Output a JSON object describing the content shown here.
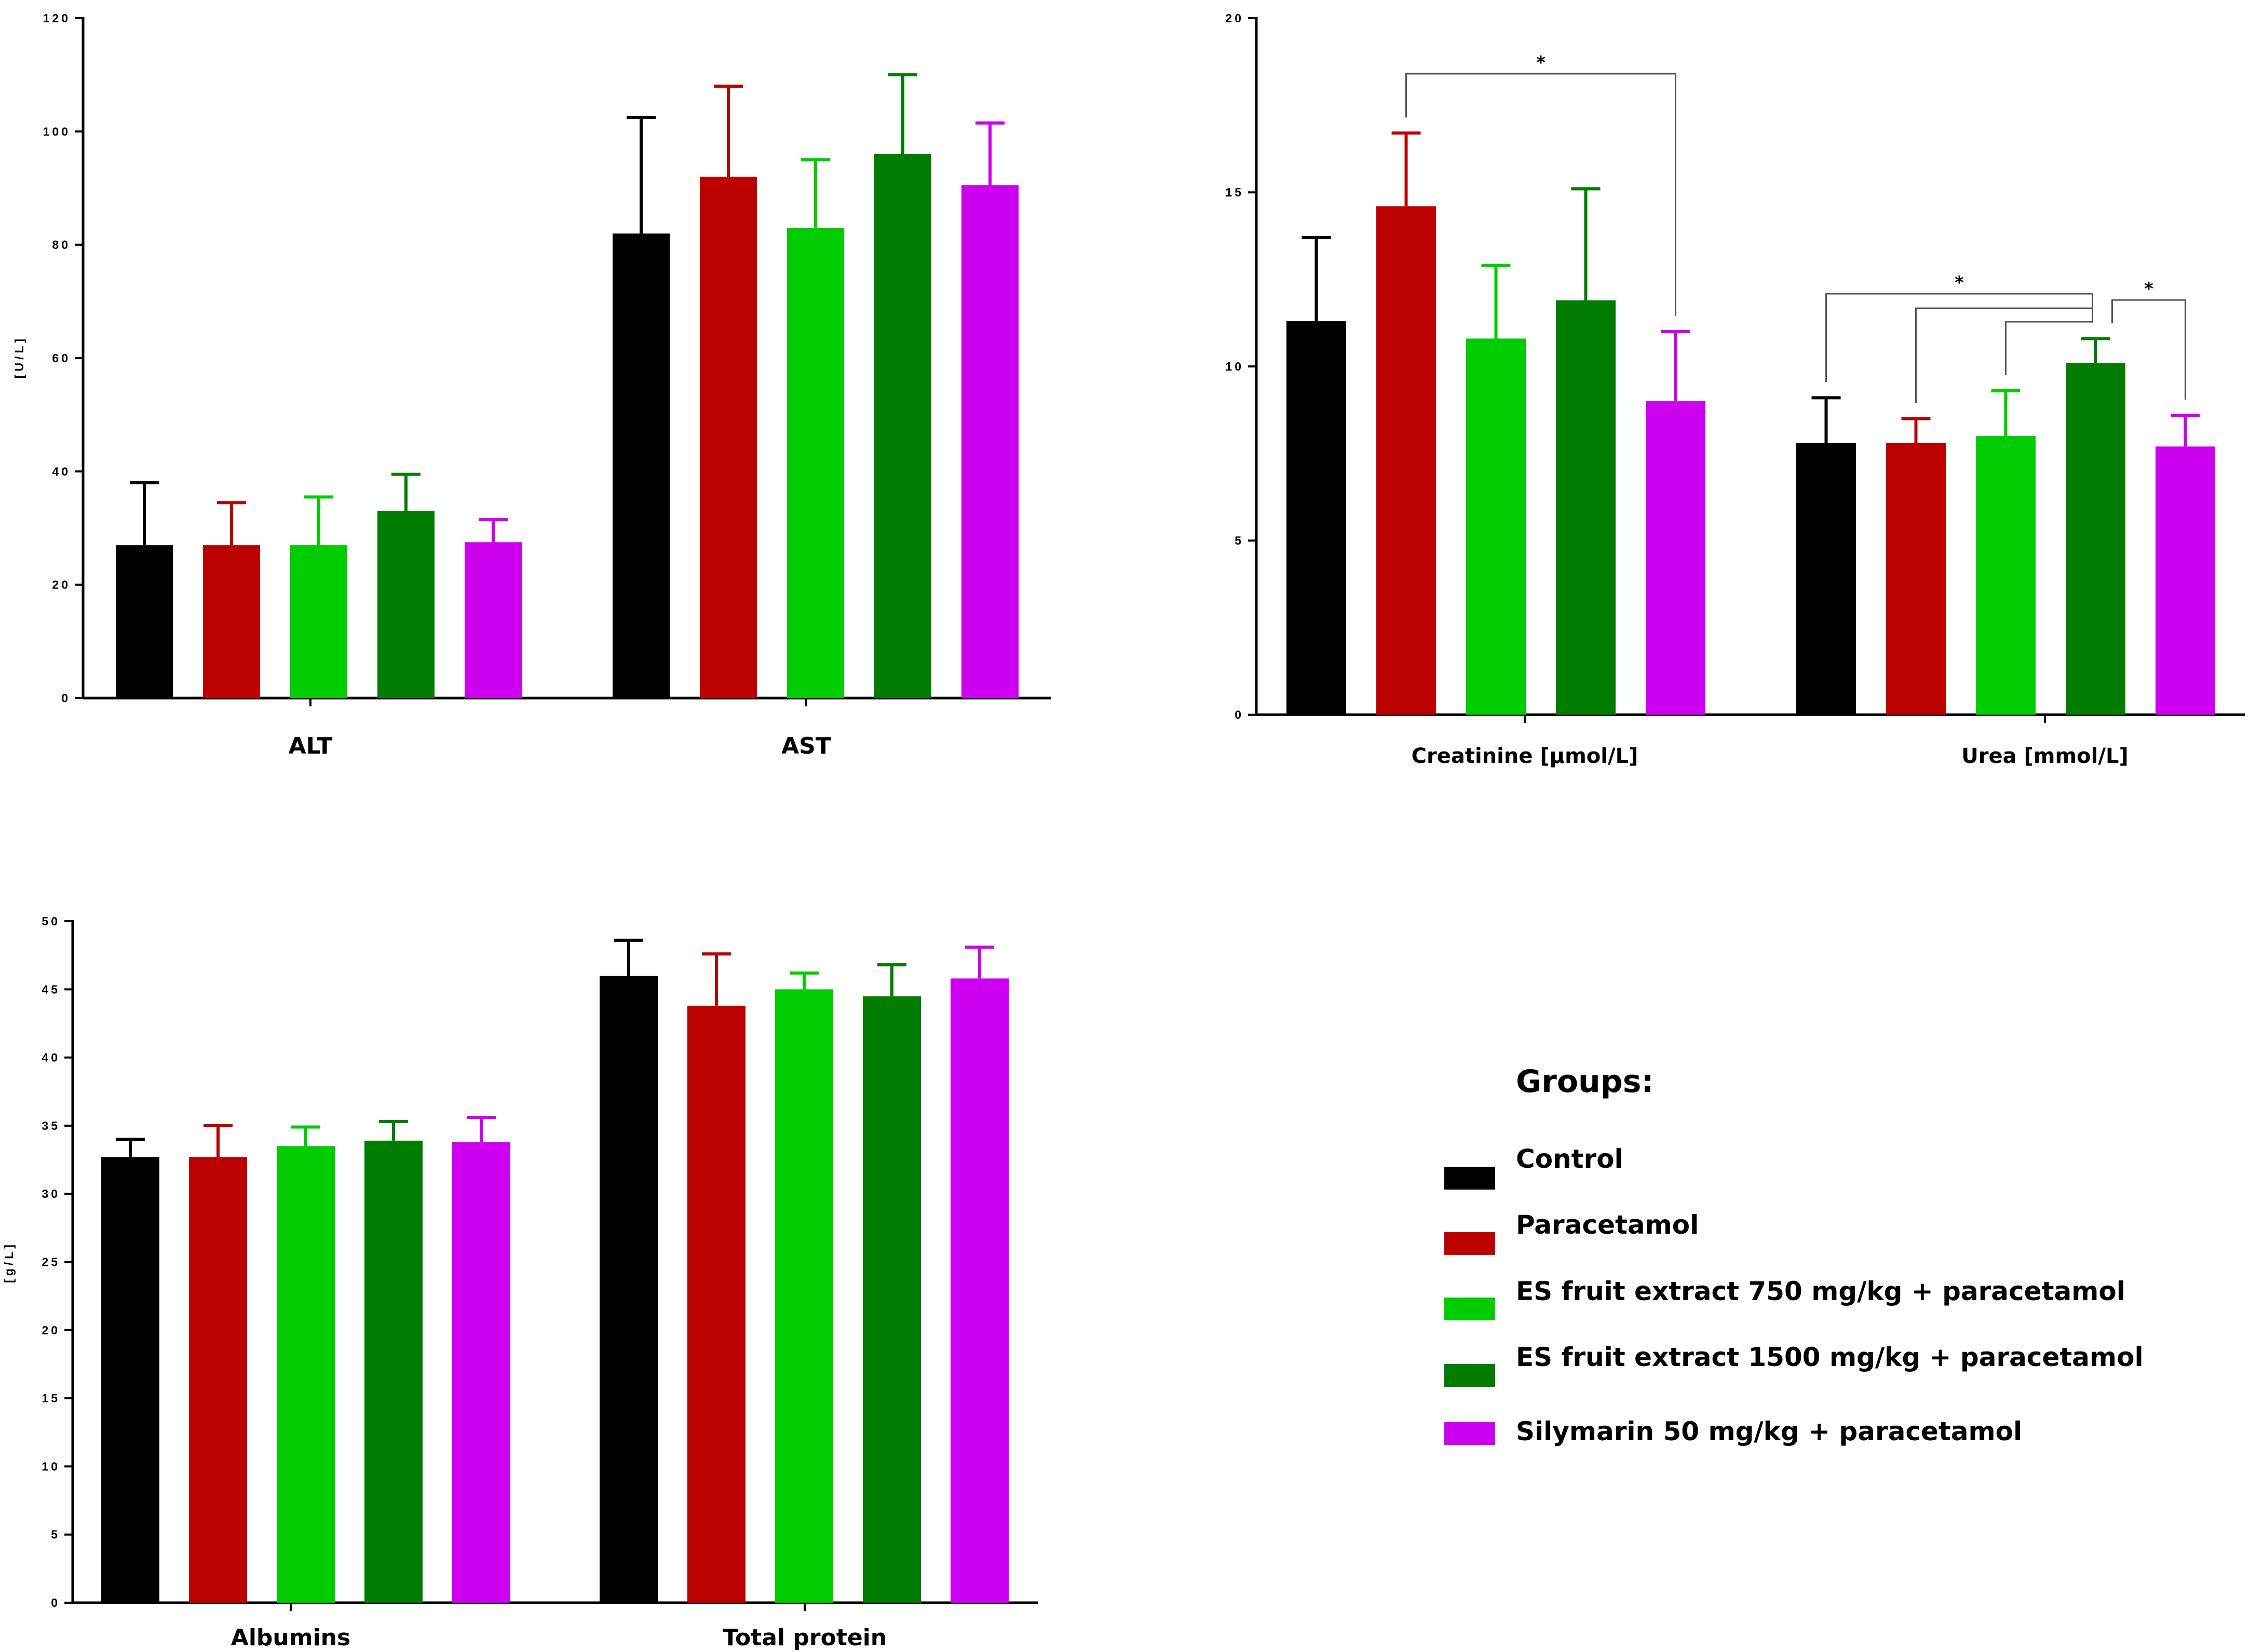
{
  "chart_data": [
    {
      "type": "bar",
      "categories": [
        "ALT",
        "AST"
      ],
      "ylabel": "[U/L]",
      "ylim": [
        0,
        120
      ],
      "yticks": [
        "0",
        "20",
        "40",
        "60",
        "80",
        "100",
        "120"
      ],
      "series": [
        {
          "name": "Control",
          "values": [
            27,
            82
          ],
          "errors": [
            11,
            20.5
          ]
        },
        {
          "name": "Paracetamol",
          "values": [
            27,
            92
          ],
          "errors": [
            7.5,
            16
          ]
        },
        {
          "name": "ES fruit extract 750 mg/kg + paracetamol",
          "values": [
            27,
            83
          ],
          "errors": [
            8.5,
            12
          ]
        },
        {
          "name": "ES fruit extract 1500 mg/kg + paracetamol",
          "values": [
            33,
            96
          ],
          "errors": [
            6.5,
            14
          ]
        },
        {
          "name": "Silymarin 50 mg/kg + paracetamol",
          "values": [
            27.5,
            90.5
          ],
          "errors": [
            4,
            11
          ]
        }
      ],
      "significance": []
    },
    {
      "type": "bar",
      "categories": [
        "Creatinine [µmol/L]",
        "Urea [mmol/L]"
      ],
      "ylabel": "",
      "ylim": [
        0,
        20
      ],
      "yticks": [
        "0",
        "5",
        "10",
        "15",
        "20"
      ],
      "series": [
        {
          "name": "Control",
          "values": [
            11.3,
            7.8
          ],
          "errors": [
            2.4,
            1.3
          ]
        },
        {
          "name": "Paracetamol",
          "values": [
            14.6,
            7.8
          ],
          "errors": [
            2.1,
            0.7
          ]
        },
        {
          "name": "ES fruit extract 750 mg/kg + paracetamol",
          "values": [
            10.8,
            8.0
          ],
          "errors": [
            2.1,
            1.3
          ]
        },
        {
          "name": "ES fruit extract 1500 mg/kg + paracetamol",
          "values": [
            11.9,
            10.1
          ],
          "errors": [
            3.2,
            0.7
          ]
        },
        {
          "name": "Silymarin 50 mg/kg + paracetamol",
          "values": [
            9.0,
            7.7
          ],
          "errors": [
            2.0,
            0.9
          ]
        }
      ],
      "significance": [
        {
          "category": 0,
          "from": 1,
          "to": 4,
          "label": "*"
        },
        {
          "category": 1,
          "from": 0,
          "to": 3,
          "label": "*"
        },
        {
          "category": 1,
          "from": 1,
          "to": 3,
          "label": ""
        },
        {
          "category": 1,
          "from": 2,
          "to": 3,
          "label": ""
        },
        {
          "category": 1,
          "from": 3,
          "to": 4,
          "label": "*"
        }
      ]
    },
    {
      "type": "bar",
      "categories": [
        "Albumins",
        "Total protein"
      ],
      "ylabel": "[g/L]",
      "ylim": [
        0,
        50
      ],
      "yticks": [
        "0",
        "5",
        "10",
        "15",
        "20",
        "25",
        "30",
        "35",
        "40",
        "45",
        "50"
      ],
      "series": [
        {
          "name": "Control",
          "values": [
            32.7,
            46.0
          ],
          "errors": [
            1.3,
            2.6
          ]
        },
        {
          "name": "Paracetamol",
          "values": [
            32.7,
            43.8
          ],
          "errors": [
            2.3,
            3.8
          ]
        },
        {
          "name": "ES fruit extract 750 mg/kg + paracetamol",
          "values": [
            33.5,
            45.0
          ],
          "errors": [
            1.4,
            1.2
          ]
        },
        {
          "name": "ES fruit extract 1500 mg/kg + paracetamol",
          "values": [
            33.9,
            44.5
          ],
          "errors": [
            1.4,
            2.3
          ]
        },
        {
          "name": "Silymarin 50 mg/kg + paracetamol",
          "values": [
            33.8,
            45.8
          ],
          "errors": [
            1.8,
            2.3
          ]
        }
      ],
      "significance": []
    }
  ],
  "legend": {
    "title": "Groups:",
    "items": [
      {
        "label": "Control",
        "color": "#000000"
      },
      {
        "label": "Paracetamol",
        "color": "#bb0000"
      },
      {
        "label": "ES fruit extract 750 mg/kg + paracetamol",
        "color": "#00cc00"
      },
      {
        "label": "ES fruit extract 1500 mg/kg + paracetamol",
        "color": "#007d00"
      },
      {
        "label": "Silymarin 50 mg/kg + paracetamol",
        "color": "#cc00ee"
      }
    ]
  }
}
